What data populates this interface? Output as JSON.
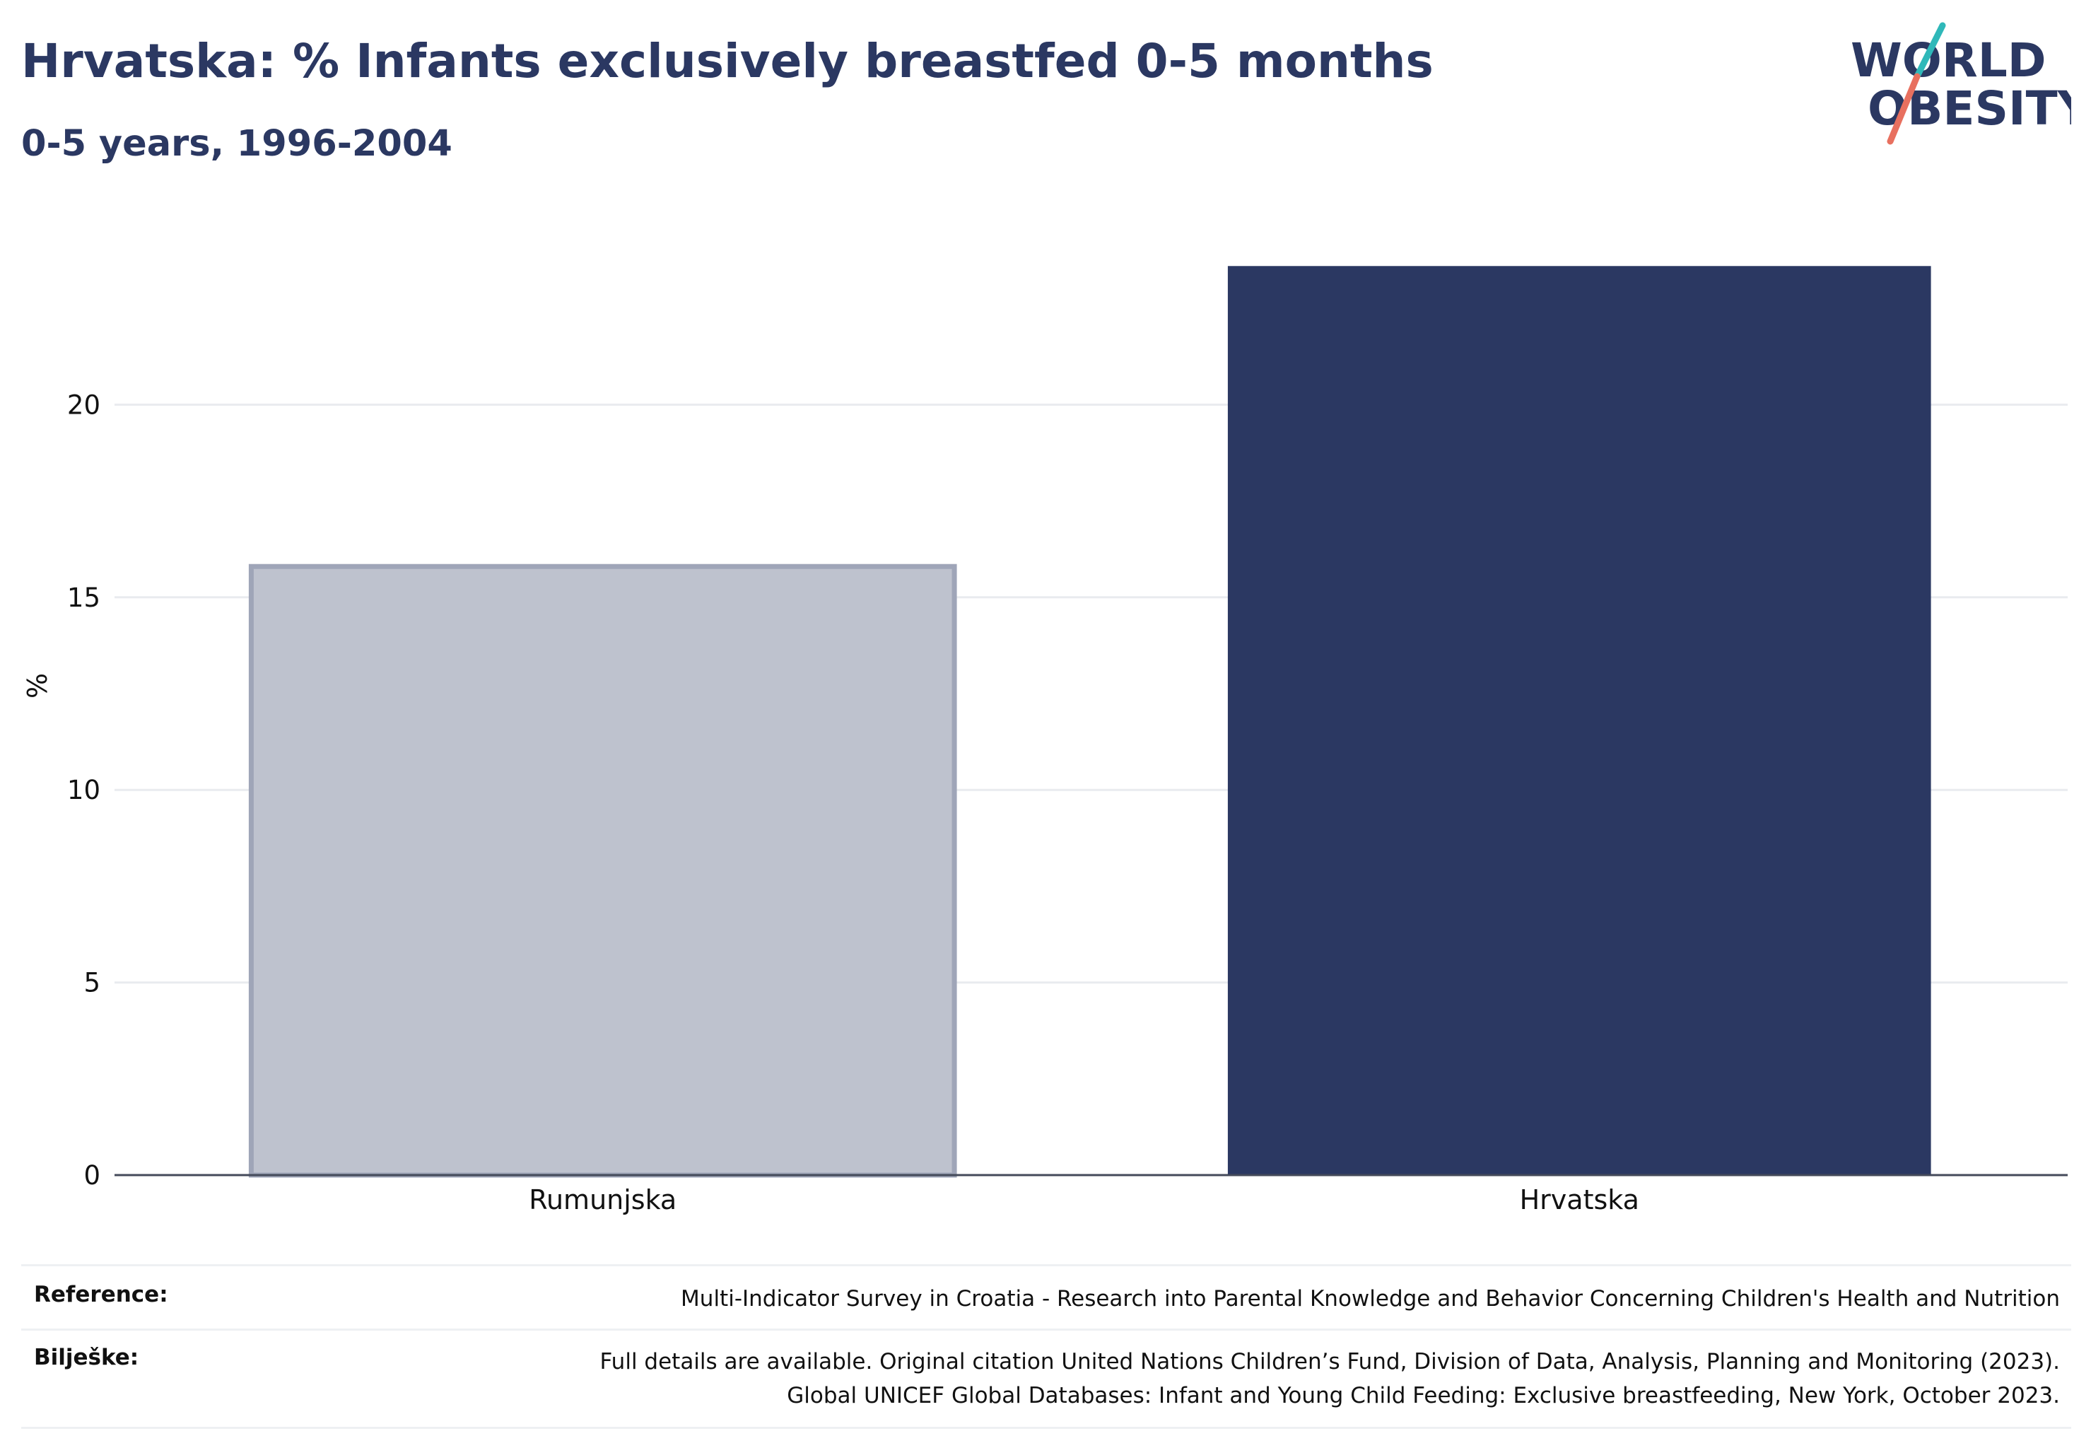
{
  "header": {
    "title": "Hrvatska: % Infants exclusively breastfed 0-5 months",
    "subtitle": "0-5 years, 1996-2004"
  },
  "logo": {
    "line1": "WORLD",
    "line2": "OBESITY",
    "accent_colors": [
      "#2fb8b9",
      "#e8705f"
    ]
  },
  "chart_data": {
    "type": "bar",
    "title": "Hrvatska: % Infants exclusively breastfed 0-5 months",
    "subtitle": "0-5 years, 1996-2004",
    "categories": [
      "Rumunjska",
      "Hrvatska"
    ],
    "values": [
      15.8,
      23.6
    ],
    "ylabel": "%",
    "xlabel": "",
    "ylim": [
      0,
      25
    ],
    "yticks": [
      0,
      5,
      10,
      15,
      20
    ],
    "grid": true,
    "legend": "none",
    "bar_colors": [
      "#bec2ce",
      "#2b3862"
    ],
    "highlighted_category": "Hrvatska"
  },
  "footer": {
    "reference_label": "Reference:",
    "reference_text": "Multi-Indicator Survey in Croatia - Research into Parental Knowledge and Behavior Concerning Children's Health and Nutrition",
    "notes_label": "Bilješke:",
    "notes_line1": "Full details are available. Original citation United Nations Children’s Fund, Division of Data, Analysis, Planning and Monitoring (2023).",
    "notes_line2": "Global UNICEF Global Databases: Infant and Young Child Feeding: Exclusive breastfeeding, New York, October 2023."
  }
}
